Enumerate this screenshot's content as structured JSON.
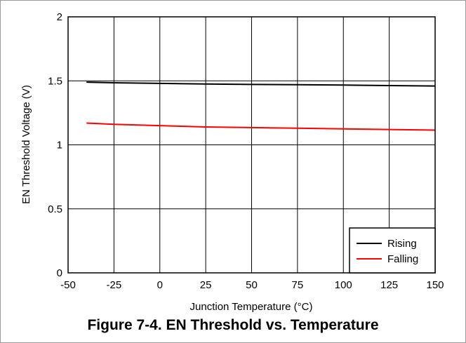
{
  "caption": "Figure 7-4. EN Threshold vs. Temperature",
  "chart_data": {
    "type": "line",
    "xlabel": "Junction Temperature (°C)",
    "ylabel": "EN Threshold Voltage (V)",
    "xlim": [
      -50,
      150
    ],
    "ylim": [
      0,
      2
    ],
    "xticks": [
      -50,
      -25,
      0,
      25,
      50,
      75,
      100,
      125,
      150
    ],
    "yticks": [
      0,
      0.5,
      1,
      1.5,
      2
    ],
    "ytick_labels": [
      "0",
      "0.5",
      "1",
      "1.5",
      "2"
    ],
    "grid": true,
    "legend_position": "bottom-right",
    "series": [
      {
        "name": "Rising",
        "color": "#000000",
        "x": [
          -40,
          -25,
          0,
          25,
          50,
          75,
          100,
          125,
          150
        ],
        "values": [
          1.49,
          1.485,
          1.48,
          1.475,
          1.472,
          1.47,
          1.467,
          1.463,
          1.46
        ]
      },
      {
        "name": "Falling",
        "color": "#ff0000",
        "x": [
          -40,
          -25,
          0,
          25,
          50,
          75,
          100,
          125,
          150
        ],
        "values": [
          1.17,
          1.16,
          1.15,
          1.14,
          1.135,
          1.13,
          1.125,
          1.12,
          1.115
        ]
      }
    ]
  }
}
